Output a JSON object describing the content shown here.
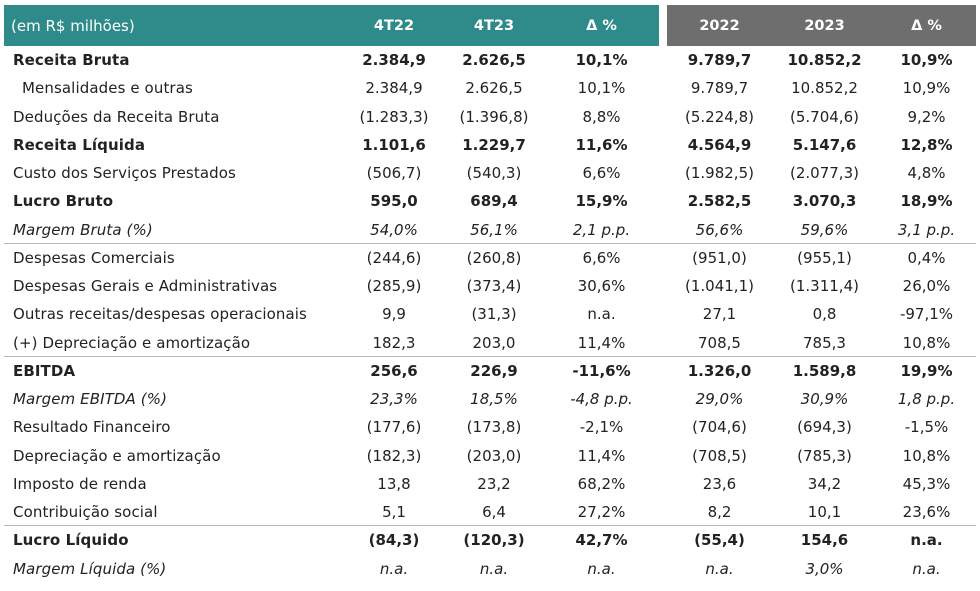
{
  "header": {
    "label": "(em R$ milhões)",
    "col_4t22": "4T22",
    "col_4t23": "4T23",
    "col_delta_q": "Δ %",
    "col_2022": "2022",
    "col_2023": "2023",
    "col_delta_y": "Δ %"
  },
  "rows": [
    {
      "label": "Receita Bruta",
      "v": [
        "2.384,9",
        "2.626,5",
        "10,1%",
        "9.789,7",
        "10.852,2",
        "10,9%"
      ]
    },
    {
      "label": "Mensalidades e outras",
      "v": [
        "2.384,9",
        "2.626,5",
        "10,1%",
        "9.789,7",
        "10.852,2",
        "10,9%"
      ]
    },
    {
      "label": "Deduções da Receita Bruta",
      "v": [
        "(1.283,3)",
        "(1.396,8)",
        "8,8%",
        "(5.224,8)",
        "(5.704,6)",
        "9,2%"
      ]
    },
    {
      "label": "Receita Líquida",
      "v": [
        "1.101,6",
        "1.229,7",
        "11,6%",
        "4.564,9",
        "5.147,6",
        "12,8%"
      ]
    },
    {
      "label": "Custo dos Serviços Prestados",
      "v": [
        "(506,7)",
        "(540,3)",
        "6,6%",
        "(1.982,5)",
        "(2.077,3)",
        "4,8%"
      ]
    },
    {
      "label": "Lucro Bruto",
      "v": [
        "595,0",
        "689,4",
        "15,9%",
        "2.582,5",
        "3.070,3",
        "18,9%"
      ]
    },
    {
      "label": "Margem Bruta (%)",
      "v": [
        "54,0%",
        "56,1%",
        "2,1 p.p.",
        "56,6%",
        "59,6%",
        "3,1 p.p."
      ]
    },
    {
      "label": "Despesas Comerciais",
      "v": [
        "(244,6)",
        "(260,8)",
        "6,6%",
        "(951,0)",
        "(955,1)",
        "0,4%"
      ]
    },
    {
      "label": "Despesas Gerais e Administrativas",
      "v": [
        "(285,9)",
        "(373,4)",
        "30,6%",
        "(1.041,1)",
        "(1.311,4)",
        "26,0%"
      ]
    },
    {
      "label": "Outras receitas/despesas operacionais",
      "v": [
        "9,9",
        "(31,3)",
        "n.a.",
        "27,1",
        "0,8",
        "-97,1%"
      ]
    },
    {
      "label": "(+) Depreciação e amortização",
      "v": [
        "182,3",
        "203,0",
        "11,4%",
        "708,5",
        "785,3",
        "10,8%"
      ]
    },
    {
      "label": "EBITDA",
      "v": [
        "256,6",
        "226,9",
        "-11,6%",
        "1.326,0",
        "1.589,8",
        "19,9%"
      ]
    },
    {
      "label": "Margem EBITDA (%)",
      "v": [
        "23,3%",
        "18,5%",
        "-4,8 p.p.",
        "29,0%",
        "30,9%",
        "1,8 p.p."
      ]
    },
    {
      "label": "Resultado Financeiro",
      "v": [
        "(177,6)",
        "(173,8)",
        "-2,1%",
        "(704,6)",
        "(694,3)",
        "-1,5%"
      ]
    },
    {
      "label": "Depreciação e amortização",
      "v": [
        "(182,3)",
        "(203,0)",
        "11,4%",
        "(708,5)",
        "(785,3)",
        "10,8%"
      ]
    },
    {
      "label": "Imposto de renda",
      "v": [
        "13,8",
        "23,2",
        "68,2%",
        "23,6",
        "34,2",
        "45,3%"
      ]
    },
    {
      "label": "Contribuição social",
      "v": [
        "5,1",
        "6,4",
        "27,2%",
        "8,2",
        "10,1",
        "23,6%"
      ]
    },
    {
      "label": "Lucro Líquido",
      "v": [
        "(84,3)",
        "(120,3)",
        "42,7%",
        "(55,4)",
        "154,6",
        "n.a."
      ]
    },
    {
      "label": "Margem Líquida (%)",
      "v": [
        "n.a.",
        "n.a.",
        "n.a.",
        "n.a.",
        "3,0%",
        "n.a."
      ]
    }
  ]
}
